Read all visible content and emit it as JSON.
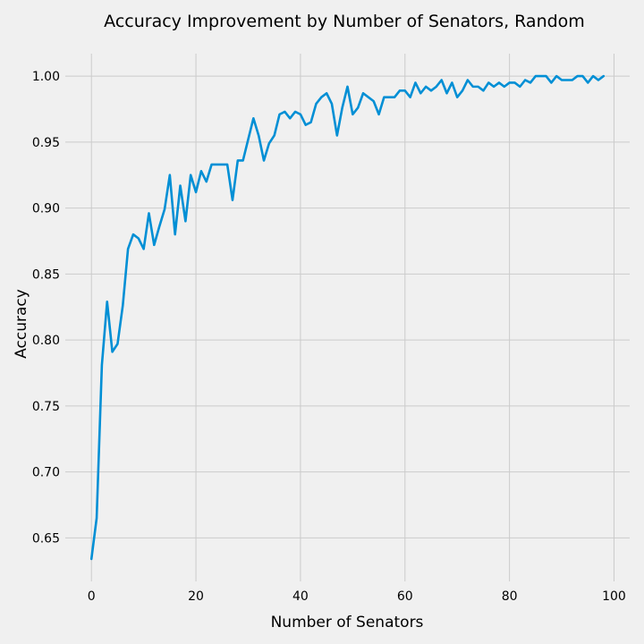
{
  "chart_data": {
    "type": "line",
    "title": "Accuracy Improvement by Number of Senators, Random",
    "xlabel": "Number of Senators",
    "ylabel": "Accuracy",
    "xlim": [
      -5,
      103
    ],
    "ylim": [
      0.617,
      1.017
    ],
    "x_ticks": [
      0,
      20,
      40,
      60,
      80,
      100
    ],
    "y_ticks": [
      0.65,
      0.7,
      0.75,
      0.8,
      0.85,
      0.9,
      0.95,
      1.0
    ],
    "x_tick_labels": [
      "0",
      "20",
      "40",
      "60",
      "80",
      "100"
    ],
    "y_tick_labels": [
      "0.65",
      "0.70",
      "0.75",
      "0.80",
      "0.85",
      "0.90",
      "0.95",
      "1.00"
    ],
    "grid": true,
    "series": [
      {
        "color": "#008fd5",
        "x": [
          0,
          1,
          2,
          3,
          4,
          5,
          6,
          7,
          8,
          9,
          10,
          11,
          12,
          13,
          14,
          15,
          16,
          17,
          18,
          19,
          20,
          21,
          22,
          23,
          24,
          25,
          26,
          27,
          28,
          29,
          30,
          31,
          32,
          33,
          34,
          35,
          36,
          37,
          38,
          39,
          40,
          41,
          42,
          43,
          44,
          45,
          46,
          47,
          48,
          49,
          50,
          51,
          52,
          53,
          54,
          55,
          56,
          57,
          58,
          59,
          60,
          61,
          62,
          63,
          64,
          65,
          66,
          67,
          68,
          69,
          70,
          71,
          72,
          73,
          74,
          75,
          76,
          77,
          78,
          79,
          80,
          81,
          82,
          83,
          84,
          85,
          86,
          87,
          88,
          89,
          90,
          91,
          92,
          93,
          94,
          95,
          96,
          97,
          98
        ],
        "y": [
          0.634,
          0.665,
          0.781,
          0.829,
          0.791,
          0.797,
          0.826,
          0.869,
          0.88,
          0.877,
          0.869,
          0.896,
          0.872,
          0.886,
          0.899,
          0.925,
          0.88,
          0.917,
          0.89,
          0.925,
          0.912,
          0.928,
          0.92,
          0.933,
          0.933,
          0.933,
          0.933,
          0.906,
          0.936,
          0.936,
          0.952,
          0.968,
          0.955,
          0.936,
          0.949,
          0.955,
          0.971,
          0.973,
          0.968,
          0.973,
          0.971,
          0.963,
          0.965,
          0.979,
          0.984,
          0.987,
          0.979,
          0.955,
          0.976,
          0.992,
          0.971,
          0.976,
          0.987,
          0.984,
          0.981,
          0.971,
          0.984,
          0.984,
          0.984,
          0.989,
          0.989,
          0.984,
          0.995,
          0.987,
          0.992,
          0.989,
          0.992,
          0.997,
          0.987,
          0.995,
          0.984,
          0.989,
          0.997,
          0.992,
          0.992,
          0.989,
          0.995,
          0.992,
          0.995,
          0.992,
          0.995,
          0.995,
          0.992,
          0.997,
          0.995,
          1.0,
          1.0,
          1.0,
          0.995,
          1.0,
          0.997,
          0.997,
          0.997,
          1.0,
          1.0,
          0.995,
          1.0,
          0.997,
          1.0
        ]
      }
    ]
  }
}
